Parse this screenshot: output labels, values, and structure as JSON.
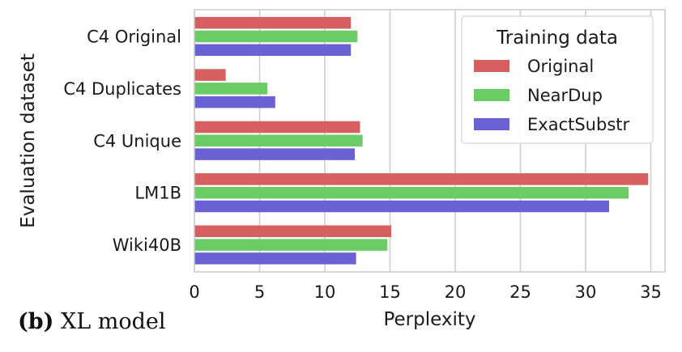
{
  "caption": {
    "label": "(b)",
    "text": "XL model"
  },
  "chart_data": {
    "type": "bar",
    "orientation": "horizontal",
    "xlabel": "Perplexity",
    "ylabel": "Evaluation dataset",
    "xlim": [
      0,
      36
    ],
    "xticks": [
      0,
      5,
      10,
      15,
      20,
      25,
      30,
      35
    ],
    "grid": true,
    "legend": {
      "title": "Training data",
      "placement": "top-right"
    },
    "categories": [
      "C4 Original",
      "C4 Duplicates",
      "C4 Unique",
      "LM1B",
      "Wiki40B"
    ],
    "series": [
      {
        "name": "Original",
        "color": "#d65f5f",
        "values": [
          12.0,
          2.4,
          12.7,
          34.8,
          15.1
        ]
      },
      {
        "name": "NearDup",
        "color": "#6acc64",
        "values": [
          12.5,
          5.6,
          12.9,
          33.3,
          14.8
        ]
      },
      {
        "name": "ExactSubstr",
        "color": "#6a62d4",
        "values": [
          12.0,
          6.2,
          12.3,
          31.8,
          12.4
        ]
      }
    ]
  }
}
